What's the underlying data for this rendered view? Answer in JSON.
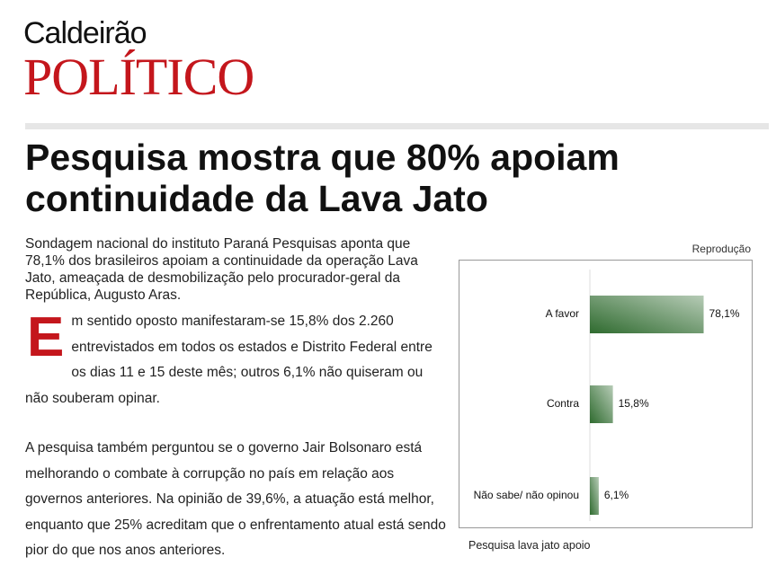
{
  "header": {
    "logo_top": "Caldeirão",
    "logo_bottom": "POLÍTICO"
  },
  "article": {
    "title": "Pesquisa mostra que 80% apoiam continuidade da Lava Jato",
    "lead": "Sondagem nacional do instituto Paraná Pesquisas aponta que 78,1% dos brasileiros apoiam a continuidade da operação Lava Jato, ameaçada de desmobilização pelo procurador-geral da República, Augusto Aras.",
    "paragraphs": [
      "Em sentido oposto manifestaram-se 15,8% dos 2.260 entrevistados em todos os estados e Distrito Federal entre os dias 11 e 15 deste mês; outros 6,1% não quiseram ou não souberam opinar.",
      "A pesquisa também perguntou se o governo Jair Bolsonaro está melhorando o combate à corrupção no país em relação aos governos anteriores. Na opinião de 39,6%, a atuação está melhor, enquanto que 25% acreditam que o enfrentamento atual está sendo pior do que nos anos anteriores."
    ]
  },
  "figure": {
    "credit": "Reprodução",
    "caption": "Pesquisa lava jato apoio"
  },
  "chart_data": {
    "type": "hbar",
    "categories": [
      "A favor",
      "Contra",
      "Não sabe/ não opinou"
    ],
    "values": [
      78.1,
      15.8,
      6.1
    ],
    "value_labels": [
      "78,1%",
      "15,8%",
      "6,1%"
    ],
    "color": "#2f6b2f"
  }
}
